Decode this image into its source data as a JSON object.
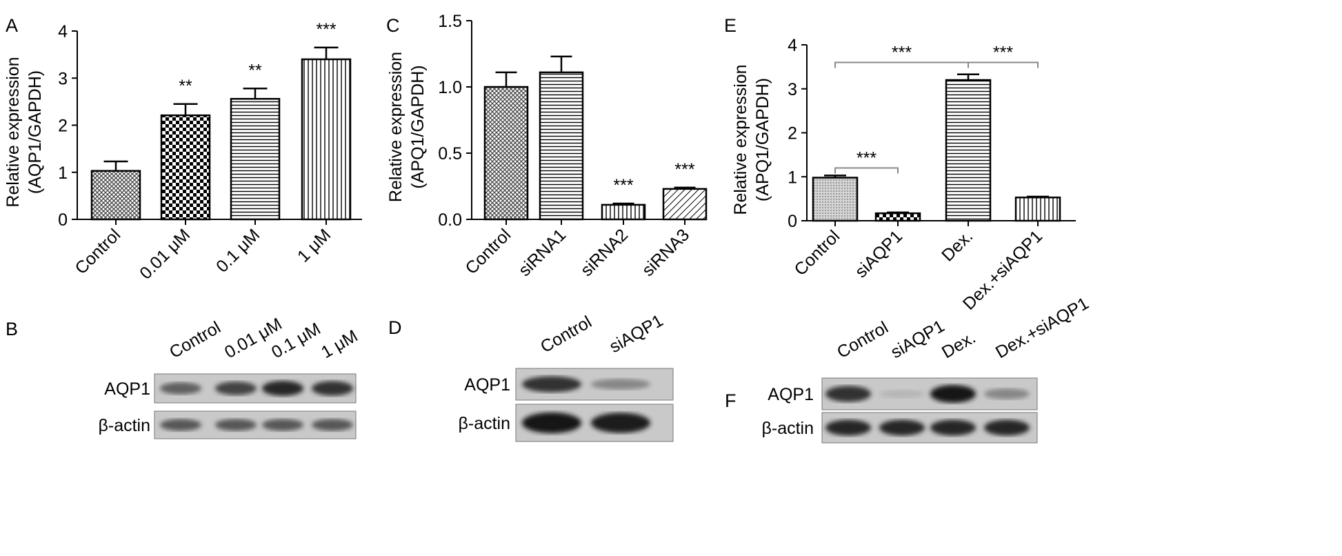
{
  "panels": {
    "A": "A",
    "B": "B",
    "C": "C",
    "D": "D",
    "E": "E",
    "F": "F"
  },
  "chart_data": [
    {
      "panel": "A",
      "type": "bar",
      "ylabel_line1": "Relative expression",
      "ylabel_line2": "(AQP1/GAPDH)",
      "ylim": [
        0,
        4
      ],
      "yticks": [
        "0",
        "1",
        "2",
        "3",
        "4"
      ],
      "categories": [
        "Control",
        "0.01 μM",
        "0.1 μM",
        "1 μM"
      ],
      "values": [
        1.03,
        2.21,
        2.56,
        3.4
      ],
      "errors": [
        0.2,
        0.24,
        0.22,
        0.25
      ],
      "significance": [
        "",
        "**",
        "**",
        "***"
      ],
      "patterns": [
        "crosshatch",
        "checker",
        "hlines",
        "vlines"
      ]
    },
    {
      "panel": "C",
      "type": "bar",
      "ylabel_line1": "Relative expression",
      "ylabel_line2": "(APQ1/GAPDH)",
      "ylim": [
        0,
        1.5
      ],
      "yticks": [
        "0.0",
        "0.5",
        "1.0",
        "1.5"
      ],
      "categories": [
        "Control",
        "siRNA1",
        "siRNA2",
        "siRNA3"
      ],
      "values": [
        1.0,
        1.11,
        0.11,
        0.23
      ],
      "errors": [
        0.11,
        0.12,
        0.01,
        0.01
      ],
      "significance": [
        "",
        "",
        "***",
        "***"
      ],
      "patterns": [
        "crosshatch",
        "hlines",
        "vlines",
        "diag"
      ]
    },
    {
      "panel": "E",
      "type": "bar",
      "ylabel_line1": "Relative expression",
      "ylabel_line2": "(APQ1/GAPDH)",
      "ylim": [
        0,
        4
      ],
      "yticks": [
        "0",
        "1",
        "2",
        "3",
        "4"
      ],
      "categories": [
        "Control",
        "siAQP1",
        "Dex.",
        "Dex.+siAQP1"
      ],
      "values": [
        0.98,
        0.17,
        3.2,
        0.53
      ],
      "errors": [
        0.05,
        0.02,
        0.13,
        0.02
      ],
      "brackets": [
        {
          "from": 0,
          "to": 2,
          "label": "***",
          "level": 3.6
        },
        {
          "from": 2,
          "to": 3,
          "label": "***",
          "level": 3.6
        },
        {
          "from": 0,
          "to": 1,
          "label": "***",
          "level": 1.2
        }
      ],
      "patterns": [
        "grey",
        "checker",
        "hlines",
        "vlines"
      ]
    }
  ],
  "blots": {
    "B": {
      "lanes": [
        "Control",
        "0.01 μM",
        "0.1 μM",
        "1 μM"
      ],
      "rows": [
        "AQP1",
        "β-actin"
      ],
      "intensity": [
        [
          0.55,
          0.7,
          0.85,
          0.8
        ],
        [
          0.6,
          0.6,
          0.6,
          0.6
        ]
      ]
    },
    "D": {
      "lanes": [
        "Control",
        "siAQP1"
      ],
      "rows": [
        "AQP1",
        "β-actin"
      ],
      "intensity": [
        [
          0.8,
          0.35
        ],
        [
          0.95,
          0.9
        ]
      ]
    },
    "F": {
      "lanes": [
        "Control",
        "siAQP1",
        "Dex.",
        "Dex.+siAQP1"
      ],
      "rows": [
        "AQP1",
        "β-actin"
      ],
      "intensity": [
        [
          0.8,
          0.1,
          0.95,
          0.35
        ],
        [
          0.85,
          0.85,
          0.85,
          0.85
        ]
      ]
    }
  },
  "colors": {
    "ink": "#000000",
    "bracket": "#888888",
    "blot_bg": "#c9c9c9"
  }
}
